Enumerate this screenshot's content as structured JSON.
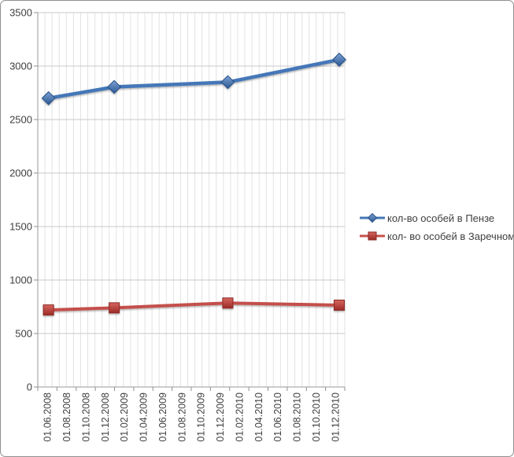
{
  "window": {
    "background": "#ffffff",
    "border_color": "#8f8f8f"
  },
  "chart_data": {
    "type": "line",
    "title": "",
    "xlabel": "",
    "ylabel": "",
    "ylim": [
      0,
      3500
    ],
    "yticks": [
      0,
      500,
      1000,
      1500,
      2000,
      2500,
      3000,
      3500
    ],
    "x_ticklabels": [
      "01.06.2008",
      "01.08.2008",
      "01.10.2008",
      "01.12.2008",
      "01.02.2009",
      "01.04.2009",
      "01.06.2009",
      "01.08.2009",
      "01.10.2009",
      "01.12.2009",
      "01.02.2010",
      "01.04.2010",
      "01.06.2010",
      "01.08.2010",
      "01.10.2010",
      "01.12.2010"
    ],
    "grid": {
      "horizontal_color": "#c9c9c9",
      "vertical_color": "#e2e2e2",
      "vertical_line_count": 43,
      "horizontal_on": true,
      "vertical_on": true
    },
    "axis_color": "#9a9a9a",
    "tick_color": "#8f8f8f",
    "label_color": "#3f3f3f",
    "legend_position": "right",
    "series": [
      {
        "name": "кол-во особей в Пензе",
        "color": "#4477b8",
        "marker": "diamond",
        "marker_gradient": [
          "#7fa3d4",
          "#2b5894"
        ],
        "marker_stroke": "#264f86",
        "points": [
          {
            "x_frac": 0.035,
            "date_approx": "01.06.2008",
            "value": 2700
          },
          {
            "x_frac": 0.249,
            "date_approx": "01.01.2009",
            "value": 2805
          },
          {
            "x_frac": 0.619,
            "date_approx": "01.01.2010",
            "value": 2850
          },
          {
            "x_frac": 0.982,
            "date_approx": "01.12.2010",
            "value": 3060
          }
        ]
      },
      {
        "name": "кол- во особей в Заречном",
        "color": "#c4504c",
        "marker": "square",
        "marker_gradient": [
          "#d6655f",
          "#9c2b26"
        ],
        "marker_stroke": "#8e2a26",
        "points": [
          {
            "x_frac": 0.035,
            "date_approx": "01.06.2008",
            "value": 720
          },
          {
            "x_frac": 0.249,
            "date_approx": "01.01.2009",
            "value": 740
          },
          {
            "x_frac": 0.619,
            "date_approx": "01.01.2010",
            "value": 785
          },
          {
            "x_frac": 0.982,
            "date_approx": "01.12.2010",
            "value": 765
          }
        ]
      }
    ]
  }
}
